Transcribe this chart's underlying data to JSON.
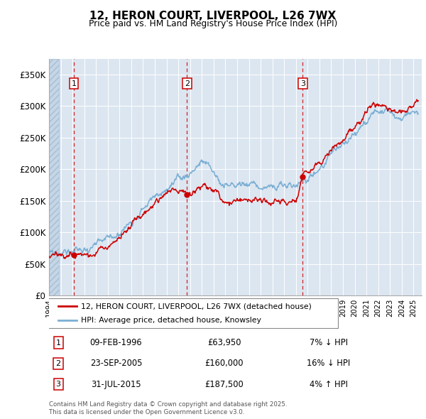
{
  "title": "12, HERON COURT, LIVERPOOL, L26 7WX",
  "subtitle": "Price paid vs. HM Land Registry's House Price Index (HPI)",
  "ylabel_ticks": [
    "£0",
    "£50K",
    "£100K",
    "£150K",
    "£200K",
    "£250K",
    "£300K",
    "£350K"
  ],
  "ytick_values": [
    0,
    50000,
    100000,
    150000,
    200000,
    250000,
    300000,
    350000
  ],
  "ylim": [
    0,
    375000
  ],
  "xlim_start": 1994.0,
  "xlim_end": 2025.7,
  "sale_dates": [
    1996.11,
    2005.73,
    2015.58
  ],
  "sale_prices": [
    63950,
    160000,
    187500
  ],
  "sale_labels": [
    "1",
    "2",
    "3"
  ],
  "sale_table": [
    [
      "1",
      "09-FEB-1996",
      "£63,950",
      "7% ↓ HPI"
    ],
    [
      "2",
      "23-SEP-2005",
      "£160,000",
      "16% ↓ HPI"
    ],
    [
      "3",
      "31-JUL-2015",
      "£187,500",
      "4% ↑ HPI"
    ]
  ],
  "legend_line1": "12, HERON COURT, LIVERPOOL, L26 7WX (detached house)",
  "legend_line2": "HPI: Average price, detached house, Knowsley",
  "footer": "Contains HM Land Registry data © Crown copyright and database right 2025.\nThis data is licensed under the Open Government Licence v3.0.",
  "bg_color": "#dce6f1",
  "grid_color": "#ffffff",
  "line_color_red": "#cc0000",
  "line_color_blue": "#7bafd4",
  "dashed_line_color": "#cc0000",
  "hpi_knots_x": [
    1994.0,
    1995.0,
    1996.0,
    1997.0,
    1998.0,
    1999.0,
    2000.0,
    2001.0,
    2002.0,
    2003.0,
    2004.0,
    2005.0,
    2006.0,
    2007.0,
    2008.0,
    2009.0,
    2010.0,
    2011.0,
    2012.0,
    2013.0,
    2014.0,
    2015.0,
    2016.0,
    2017.0,
    2018.0,
    2019.0,
    2020.0,
    2021.0,
    2022.0,
    2023.0,
    2024.0,
    2025.3
  ],
  "hpi_knots_y": [
    65000,
    68000,
    70000,
    72000,
    78000,
    88000,
    100000,
    118000,
    138000,
    155000,
    168000,
    180000,
    195000,
    210000,
    195000,
    172000,
    175000,
    178000,
    172000,
    170000,
    172000,
    175000,
    185000,
    202000,
    220000,
    238000,
    252000,
    278000,
    295000,
    285000,
    280000,
    290000
  ],
  "price_knots_x": [
    1994.0,
    1995.0,
    1996.11,
    1997.0,
    1998.0,
    1999.0,
    2000.0,
    2001.0,
    2002.0,
    2003.0,
    2004.0,
    2005.0,
    2005.73,
    2006.0,
    2007.0,
    2008.0,
    2009.0,
    2010.0,
    2011.0,
    2012.0,
    2013.0,
    2014.0,
    2015.0,
    2015.58,
    2016.0,
    2017.0,
    2018.0,
    2019.0,
    2020.0,
    2021.0,
    2022.0,
    2023.0,
    2024.0,
    2025.3
  ],
  "price_knots_y": [
    63000,
    63000,
    63950,
    65000,
    70000,
    78000,
    90000,
    108000,
    128000,
    145000,
    163000,
    168000,
    160000,
    162000,
    170000,
    165000,
    148000,
    150000,
    152000,
    148000,
    147000,
    148000,
    150000,
    187500,
    195000,
    210000,
    228000,
    248000,
    265000,
    290000,
    305000,
    295000,
    290000,
    305000
  ]
}
